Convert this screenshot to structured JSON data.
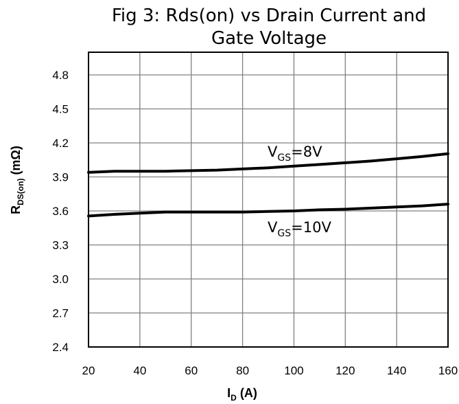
{
  "chart_data": {
    "type": "line",
    "title_line1": "Fig 3: Rds(on) vs Drain Current and",
    "title_line2": "Gate Voltage",
    "xlabel_main": "I",
    "xlabel_sub": "D",
    "xlabel_unit": " (A)",
    "ylabel_main": "R",
    "ylabel_sub": "DS(on)",
    "ylabel_unit": " (mΩ)",
    "xlim": [
      20,
      160
    ],
    "ylim": [
      2.4,
      5.0
    ],
    "x_ticks": [
      "20",
      "40",
      "60",
      "80",
      "100",
      "120",
      "140",
      "160"
    ],
    "x_tick_values": [
      20,
      40,
      60,
      80,
      100,
      120,
      140,
      160
    ],
    "y_ticks": [
      "2.4",
      "2.7",
      "3.0",
      "3.3",
      "3.6",
      "3.9",
      "4.2",
      "4.5",
      "4.8"
    ],
    "y_tick_values": [
      2.4,
      2.7,
      3.0,
      3.3,
      3.6,
      3.9,
      4.2,
      4.5,
      4.8
    ],
    "grid": true,
    "series_color": "#000000",
    "grid_color": "#808080",
    "series": [
      {
        "label_main": "V",
        "label_sub": "GS",
        "label_rest": "=8V",
        "x": [
          20,
          30,
          40,
          50,
          60,
          70,
          80,
          90,
          100,
          110,
          120,
          130,
          140,
          150,
          160
        ],
        "y": [
          3.94,
          3.95,
          3.95,
          3.95,
          3.955,
          3.96,
          3.97,
          3.98,
          3.995,
          4.01,
          4.025,
          4.04,
          4.06,
          4.08,
          4.105
        ]
      },
      {
        "label_main": "V",
        "label_sub": "GS",
        "label_rest": "=10V",
        "x": [
          20,
          30,
          40,
          50,
          60,
          70,
          80,
          90,
          100,
          110,
          120,
          130,
          140,
          150,
          160
        ],
        "y": [
          3.555,
          3.57,
          3.58,
          3.59,
          3.59,
          3.59,
          3.59,
          3.595,
          3.6,
          3.61,
          3.615,
          3.625,
          3.635,
          3.645,
          3.66
        ]
      }
    ]
  }
}
